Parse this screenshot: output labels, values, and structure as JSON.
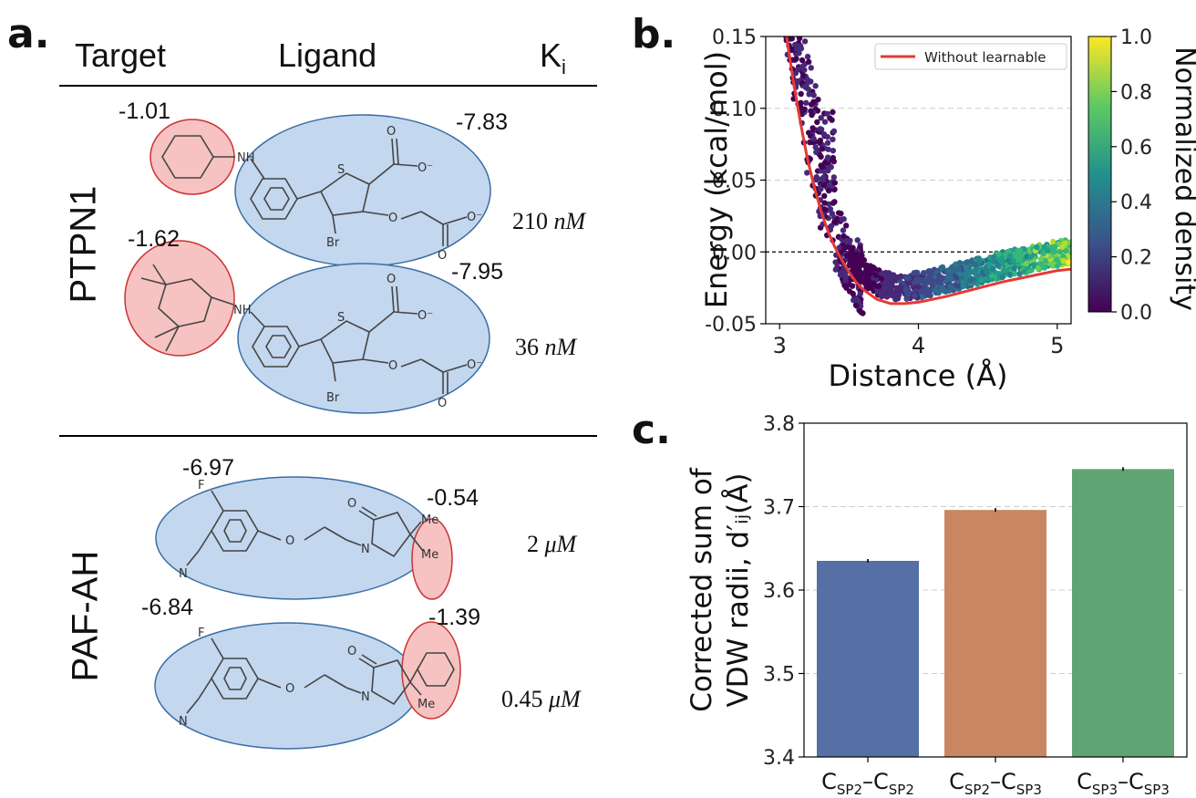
{
  "panel_a": {
    "label": "a.",
    "headers": {
      "target": "Target",
      "ligand": "Ligand",
      "ki_main": "K",
      "ki_sub": "i"
    },
    "groups": [
      {
        "target": "PTPN1",
        "entries": [
          {
            "red_score": "-1.01",
            "blue_score": "-7.83",
            "ki_value": "210",
            "ki_unit": "nM"
          },
          {
            "red_score": "-1.62",
            "blue_score": "-7.95",
            "ki_value": "36",
            "ki_unit": "nM"
          }
        ]
      },
      {
        "target": "PAF-AH",
        "entries": [
          {
            "blue_score": "-6.97",
            "red_score": "-0.54",
            "ki_value": "2",
            "ki_unit": "μM"
          },
          {
            "blue_score": "-6.84",
            "red_score": "-1.39",
            "ki_value": "0.45",
            "ki_unit": "μM"
          }
        ]
      }
    ],
    "atom_labels": {
      "nh": "NH",
      "s": "S",
      "o": "O",
      "o_minus": "O⁻",
      "br": "Br",
      "f": "F",
      "n": "N",
      "me": "Me"
    }
  },
  "panel_b": {
    "label": "b.",
    "colors": {
      "curve": "#e53935",
      "reference_line": "#000000"
    },
    "colorbar": {
      "label": "Normalized density",
      "ticks": [
        "0.0",
        "0.2",
        "0.4",
        "0.6",
        "0.8",
        "1.0"
      ],
      "colormap": "viridis"
    }
  },
  "panel_c": {
    "label": "c.",
    "ylabel_line1": "Corrected sum of",
    "ylabel_line2": "VDW radii, d′ᵢⱼ(Å)"
  },
  "chart_data": [
    {
      "type": "scatter",
      "title": "",
      "xlabel": "Distance (Å)",
      "ylabel": "Energy (kcal/mol)",
      "xlim": [
        2.9,
        5.1
      ],
      "ylim": [
        -0.05,
        0.15
      ],
      "xticks": [
        "3",
        "4",
        "5"
      ],
      "yticks": [
        "-0.05",
        "0.00",
        "0.05",
        "0.10",
        "0.15"
      ],
      "grid": "horizontal dashed",
      "legend": {
        "placement": "top-right",
        "entries": [
          "Without learnable"
        ]
      },
      "series": [
        {
          "name": "Without learnable",
          "kind": "line",
          "x": [
            3.05,
            3.1,
            3.15,
            3.2,
            3.25,
            3.3,
            3.35,
            3.4,
            3.45,
            3.5,
            3.55,
            3.6,
            3.7,
            3.8,
            3.9,
            4.0,
            4.2,
            4.4,
            4.6,
            4.8,
            5.0,
            5.1
          ],
          "y": [
            0.15,
            0.118,
            0.09,
            0.065,
            0.045,
            0.028,
            0.014,
            0.003,
            -0.006,
            -0.014,
            -0.021,
            -0.026,
            -0.033,
            -0.036,
            -0.036,
            -0.035,
            -0.031,
            -0.026,
            -0.021,
            -0.017,
            -0.013,
            -0.012
          ]
        }
      ]
    },
    {
      "type": "bar",
      "title": "",
      "categories": [
        "CSP2–CSP2",
        "CSP2–CSP3",
        "CSP3–CSP3"
      ],
      "category_labels": [
        {
          "a": "C",
          "a_sub": "SP2",
          "b": "C",
          "b_sub": "SP2"
        },
        {
          "a": "C",
          "a_sub": "SP2",
          "b": "C",
          "b_sub": "SP3"
        },
        {
          "a": "C",
          "a_sub": "SP3",
          "b": "C",
          "b_sub": "SP3"
        }
      ],
      "values": [
        3.635,
        3.696,
        3.745
      ],
      "colors": [
        "#5470a4",
        "#c98662",
        "#5fa473"
      ],
      "ylim": [
        3.4,
        3.8
      ],
      "yticks": [
        "3.4",
        "3.5",
        "3.6",
        "3.7",
        "3.8"
      ],
      "grid": "horizontal dashed",
      "error_bars": true
    }
  ]
}
